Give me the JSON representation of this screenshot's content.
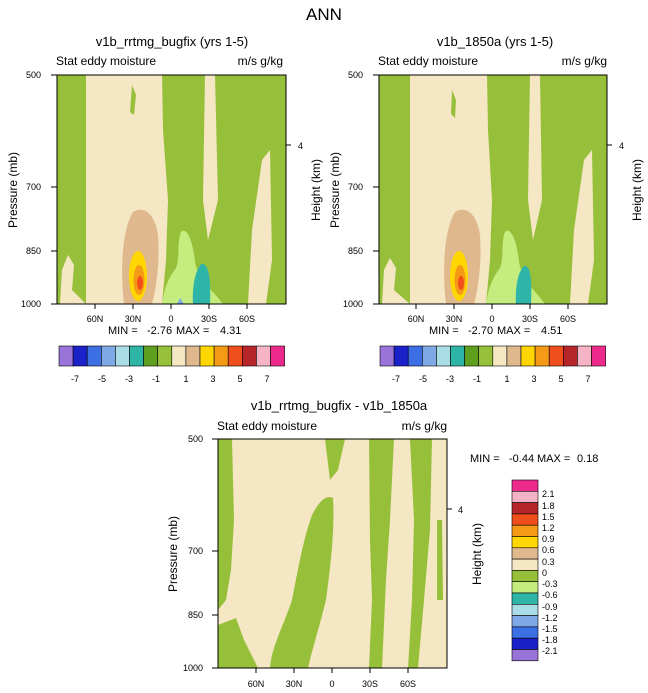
{
  "page_title": "ANN",
  "chart_data": [
    {
      "type": "contour",
      "title": "v1b_rrtmg_bugfix (yrs 1-5)",
      "left_label": "Stat eddy moisture",
      "right_label": "m/s g/kg",
      "ylabel": "Pressure (mb)",
      "right_axis_label": "Height (km)",
      "y_ticks": [
        "500",
        "700",
        "850",
        "1000"
      ],
      "right_ticks": [
        "4"
      ],
      "x_ticks": [
        "60N",
        "30N",
        "0",
        "30S",
        "60S"
      ],
      "min_label": "MIN =",
      "min_value": "-2.76",
      "max_label": "MAX =",
      "max_value": "4.31",
      "colorbar_labels": [
        "-7",
        "-5",
        "-3",
        "-1",
        "1",
        "3",
        "5",
        "7"
      ]
    },
    {
      "type": "contour",
      "title": "v1b_1850a (yrs 1-5)",
      "left_label": "Stat eddy moisture",
      "right_label": "m/s g/kg",
      "ylabel": "Pressure (mb)",
      "right_axis_label": "Height (km)",
      "y_ticks": [
        "500",
        "700",
        "850",
        "1000"
      ],
      "right_ticks": [
        "4"
      ],
      "x_ticks": [
        "60N",
        "30N",
        "0",
        "30S",
        "60S"
      ],
      "min_label": "MIN =",
      "min_value": "-2.70",
      "max_label": "MAX =",
      "max_value": "4.51",
      "colorbar_labels": [
        "-7",
        "-5",
        "-3",
        "-1",
        "1",
        "3",
        "5",
        "7"
      ]
    },
    {
      "type": "contour",
      "title": "v1b_rrtmg_bugfix - v1b_1850a",
      "left_label": "Stat eddy moisture",
      "right_label": "m/s g/kg",
      "ylabel": "Pressure (mb)",
      "right_axis_label": "Height (km)",
      "y_ticks": [
        "500",
        "700",
        "850",
        "1000"
      ],
      "right_ticks": [
        "4"
      ],
      "x_ticks": [
        "60N",
        "30N",
        "0",
        "30S",
        "60S"
      ],
      "min_label": "MIN =",
      "min_value": "-0.44",
      "max_label": "MAX =",
      "max_value": "0.18",
      "colorbar_labels": [
        "2.1",
        "1.8",
        "1.5",
        "1.2",
        "0.9",
        "0.6",
        "0.3",
        "0",
        "-0.3",
        "-0.6",
        "-0.9",
        "-1.2",
        "-1.5",
        "-1.8",
        "-2.1"
      ]
    }
  ],
  "colors": {
    "tan": "#f5e6c4",
    "green": "#97c03a",
    "light_green": "#c5ec7e",
    "teal": "#2fb5a8",
    "light_cyan": "#a9dce6",
    "light_blue": "#7ea8e6",
    "blue": "#3c6ee4",
    "dark_blue": "#1b21c9",
    "purple": "#9a73d9",
    "brown_tan": "#dfb88e",
    "gold": "#f5d21f",
    "yellow_orange": "#ffd600",
    "orange": "#f59a16",
    "red_orange": "#f04e1a",
    "dark_red": "#b52529",
    "pink": "#f7b3c6",
    "magenta": "#ed2a8c"
  },
  "palette_horizontal": [
    "#9a73d9",
    "#1b21c9",
    "#3c6ee4",
    "#7ea8e6",
    "#a9dce6",
    "#2fb5a8",
    "#5e9f1e",
    "#97c03a",
    "#f5e6c4",
    "#dfb88e",
    "#ffd600",
    "#f59a16",
    "#f04e1a",
    "#b52529",
    "#f7b3c6",
    "#ed2a8c"
  ],
  "palette_vertical": [
    "#ed2a8c",
    "#f7b3c6",
    "#b52529",
    "#f04e1a",
    "#f59a16",
    "#ffd600",
    "#dfb88e",
    "#f5e6c4",
    "#97c03a",
    "#c5ec7e",
    "#2fb5a8",
    "#a9dce6",
    "#7ea8e6",
    "#3c6ee4",
    "#1b21c9",
    "#9a73d9"
  ]
}
